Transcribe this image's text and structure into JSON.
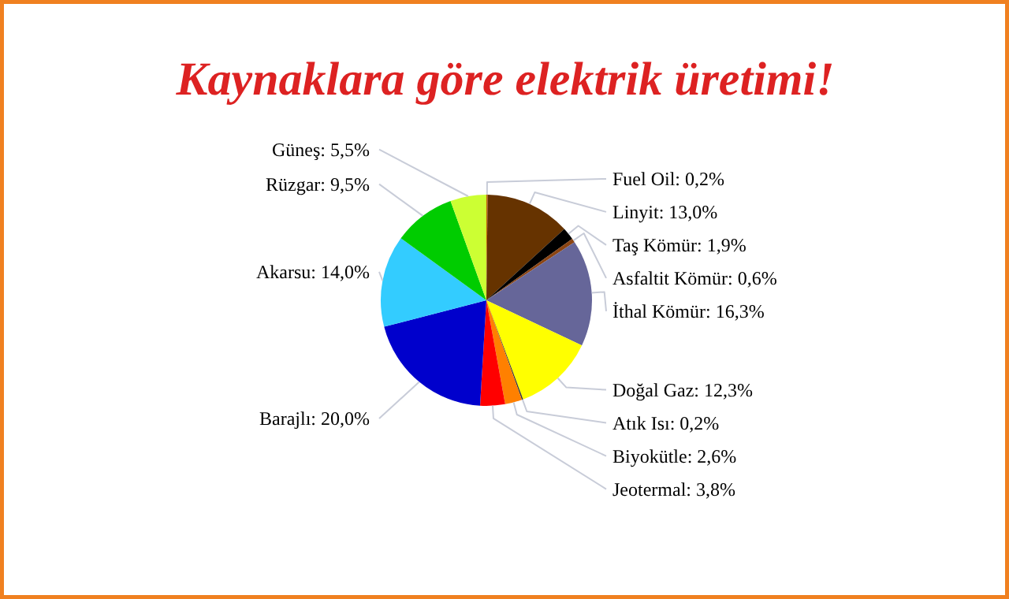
{
  "chart_data": {
    "type": "pie",
    "title": "Kaynaklara göre elektrik üretimi!",
    "categories": [
      "Fuel Oil",
      "Linyit",
      "Taş Kömür",
      "Asfaltit Kömür",
      "İthal Kömür",
      "Doğal Gaz",
      "Atık Isı",
      "Biyokütle",
      "Jeotermal",
      "Barajlı",
      "Akarsu",
      "Rüzgar",
      "Güneş"
    ],
    "values": [
      0.2,
      13.0,
      1.9,
      0.6,
      16.3,
      12.3,
      0.2,
      2.6,
      3.8,
      20.0,
      14.0,
      9.5,
      5.5
    ],
    "value_labels": [
      "0,2%",
      "13,0%",
      "1,9%",
      "0,6%",
      "16,3%",
      "12,3%",
      "0,2%",
      "2,6%",
      "3,8%",
      "20,0%",
      "14,0%",
      "9,5%",
      "5,5%"
    ],
    "colors": [
      "#c06000",
      "#663300",
      "#000000",
      "#8b4513",
      "#666699",
      "#ffff00",
      "#333333",
      "#ff8000",
      "#ff0000",
      "#0000cc",
      "#33ccff",
      "#00cc00",
      "#ccff33"
    ]
  }
}
